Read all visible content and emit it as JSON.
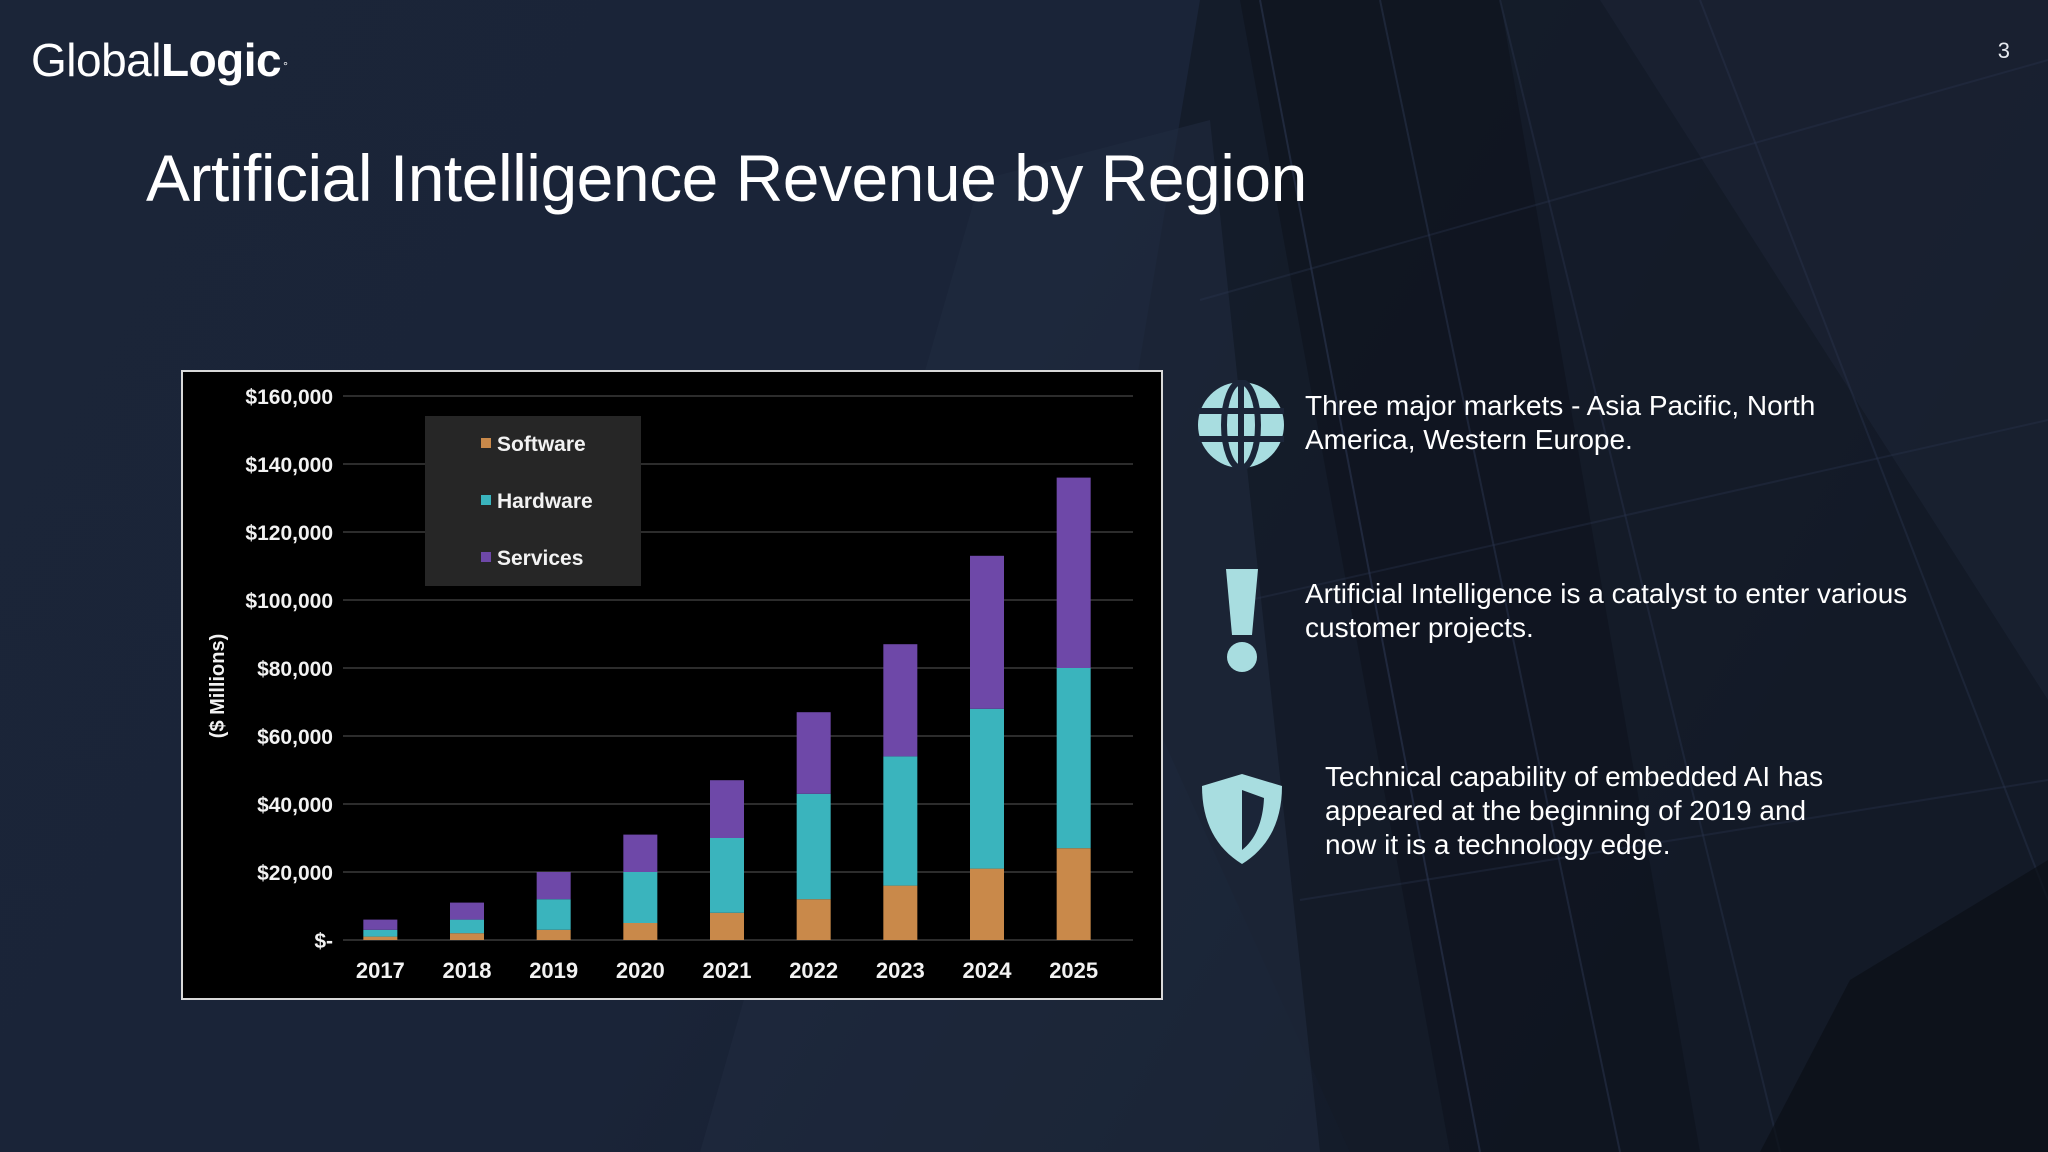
{
  "slide": {
    "logo_prefix": "Global",
    "logo_suffix": "Logic",
    "logo_mark": "°",
    "page_number": "3",
    "title": "Artificial Intelligence Revenue by Region"
  },
  "bullets": [
    {
      "icon": "globe-icon",
      "text": "Three major markets - Asia Pacific, North\nAmerica, Western Europe."
    },
    {
      "icon": "exclamation-icon",
      "text": "Artificial Intelligence is a catalyst to enter various\ncustomer projects."
    },
    {
      "icon": "shield-icon",
      "text": "Technical capability of embedded AI has\nappeared at the beginning of 2019 and\nnow  it is a technology edge."
    }
  ],
  "colors": {
    "software": "#c9894a",
    "hardware": "#3ab4bd",
    "services": "#6e48a8",
    "icon": "#a8dde0"
  },
  "chart_data": {
    "type": "bar",
    "stacked": true,
    "categories": [
      "2017",
      "2018",
      "2019",
      "2020",
      "2021",
      "2022",
      "2023",
      "2024",
      "2025"
    ],
    "series": [
      {
        "name": "Software",
        "values": [
          1000,
          2000,
          3000,
          5000,
          8000,
          12000,
          16000,
          21000,
          27000
        ]
      },
      {
        "name": "Hardware",
        "values": [
          2000,
          4000,
          9000,
          15000,
          22000,
          31000,
          38000,
          47000,
          53000
        ]
      },
      {
        "name": "Services",
        "values": [
          3000,
          5000,
          8000,
          11000,
          17000,
          24000,
          33000,
          45000,
          56000
        ]
      }
    ],
    "ylabel": "($ Millions)",
    "ylim": [
      0,
      160000
    ],
    "yticks": [
      0,
      20000,
      40000,
      60000,
      80000,
      100000,
      120000,
      140000,
      160000
    ],
    "ytick_labels": [
      "$-",
      "$20,000",
      "$40,000",
      "$60,000",
      "$80,000",
      "$100,000",
      "$120,000",
      "$140,000",
      "$160,000"
    ],
    "grid": true,
    "legend_position": "top-left"
  }
}
